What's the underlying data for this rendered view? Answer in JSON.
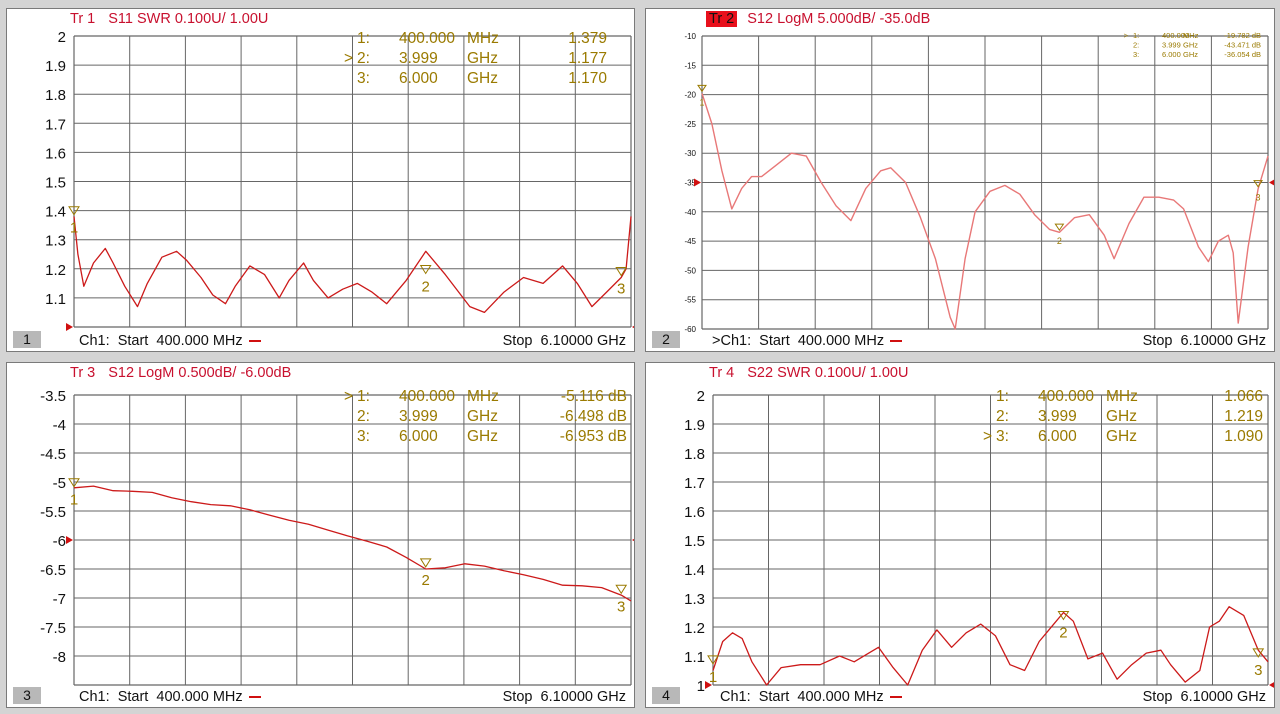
{
  "panels": [
    {
      "number": "1",
      "trace_label": "Tr  1",
      "trace_active": false,
      "measurement": "S11 SWR 0.100U/  1.00U",
      "footer": {
        "channel": "Ch1:",
        "start_label": "Start",
        "start_value": "400.000 MHz",
        "stop_label": "Stop",
        "stop_value": "6.10000 GHz"
      },
      "markers": [
        {
          "active": "",
          "id": "1:",
          "freq": "400.000",
          "unit": "MHz",
          "value": "1.379"
        },
        {
          "active": ">",
          "id": "2:",
          "freq": "3.999",
          "unit": "GHz",
          "value": "1.177"
        },
        {
          "active": "",
          "id": "3:",
          "freq": "6.000",
          "unit": "GHz",
          "value": "1.170"
        }
      ]
    },
    {
      "number": "2",
      "trace_label": "Tr  2",
      "trace_active": true,
      "measurement": "S12 LogM 5.000dB/  -35.0dB",
      "footer": {
        "channel": ">Ch1:",
        "start_label": "Start",
        "start_value": "400.000 MHz",
        "stop_label": "Stop",
        "stop_value": "6.10000 GHz"
      },
      "markers": [
        {
          "active": ">",
          "id": "1:",
          "freq": "400.000",
          "unit": "MHz",
          "value": "-19.782 dB"
        },
        {
          "active": "",
          "id": "2:",
          "freq": "3.999",
          "unit": "GHz",
          "value": "-43.471 dB"
        },
        {
          "active": "",
          "id": "3:",
          "freq": "6.000",
          "unit": "GHz",
          "value": "-36.054 dB"
        }
      ]
    },
    {
      "number": "3",
      "trace_label": "Tr  3",
      "trace_active": false,
      "measurement": "S12 LogM 0.500dB/  -6.00dB",
      "footer": {
        "channel": "Ch1:",
        "start_label": "Start",
        "start_value": "400.000 MHz",
        "stop_label": "Stop",
        "stop_value": "6.10000 GHz"
      },
      "markers": [
        {
          "active": ">",
          "id": "1:",
          "freq": "400.000",
          "unit": "MHz",
          "value": "-5.116 dB"
        },
        {
          "active": "",
          "id": "2:",
          "freq": "3.999",
          "unit": "GHz",
          "value": "-6.498 dB"
        },
        {
          "active": "",
          "id": "3:",
          "freq": "6.000",
          "unit": "GHz",
          "value": "-6.953 dB"
        }
      ]
    },
    {
      "number": "4",
      "trace_label": "Tr  4",
      "trace_active": false,
      "measurement": "S22 SWR 0.100U/  1.00U",
      "footer": {
        "channel": "Ch1:",
        "start_label": "Start",
        "start_value": "400.000 MHz",
        "stop_label": "Stop",
        "stop_value": "6.10000 GHz"
      },
      "markers": [
        {
          "active": "",
          "id": "1:",
          "freq": "400.000",
          "unit": "MHz",
          "value": "1.066"
        },
        {
          "active": "",
          "id": "2:",
          "freq": "3.999",
          "unit": "GHz",
          "value": "1.219"
        },
        {
          "active": ">",
          "id": "3:",
          "freq": "6.000",
          "unit": "GHz",
          "value": "1.090"
        }
      ]
    }
  ],
  "colors": {
    "trace": "#cc1a1a",
    "trace_light": "#e87878",
    "marker": "#9a7a00",
    "grid": "#666666",
    "title": "#c8102e"
  },
  "chart_data": [
    {
      "type": "line",
      "title": "S11 SWR 0.100U/  1.00U",
      "xlabel": "",
      "ylabel": "",
      "x_unit": "GHz",
      "xlim": [
        0.4,
        6.1
      ],
      "ylim": [
        1.0,
        2.0
      ],
      "y_ticks": [
        "2",
        "1.9",
        "1.8",
        "1.7",
        "1.6",
        "1.5",
        "1.4",
        "1.3",
        "1.2",
        "1.1"
      ],
      "reference_value": 1.0,
      "grid": true,
      "x": [
        0.4,
        0.44,
        0.5,
        0.6,
        0.72,
        0.8,
        0.92,
        1.05,
        1.15,
        1.3,
        1.45,
        1.55,
        1.7,
        1.82,
        1.95,
        2.05,
        2.2,
        2.35,
        2.5,
        2.6,
        2.75,
        2.85,
        3.0,
        3.15,
        3.3,
        3.45,
        3.6,
        3.8,
        4.0,
        4.2,
        4.45,
        4.6,
        4.8,
        5.0,
        5.2,
        5.4,
        5.55,
        5.7,
        5.85,
        6.0,
        6.05,
        6.1
      ],
      "series": [
        {
          "values": [
            1.38,
            1.25,
            1.14,
            1.22,
            1.27,
            1.22,
            1.14,
            1.07,
            1.15,
            1.24,
            1.26,
            1.23,
            1.17,
            1.11,
            1.08,
            1.14,
            1.21,
            1.18,
            1.1,
            1.16,
            1.22,
            1.16,
            1.1,
            1.13,
            1.15,
            1.12,
            1.08,
            1.16,
            1.26,
            1.18,
            1.07,
            1.05,
            1.12,
            1.17,
            1.15,
            1.21,
            1.15,
            1.07,
            1.12,
            1.17,
            1.2,
            1.38
          ]
        }
      ],
      "markers": [
        {
          "label": "1",
          "x": 0.4,
          "y": 1.379
        },
        {
          "label": "2",
          "x": 3.999,
          "y": 1.177
        },
        {
          "label": "3",
          "x": 6.0,
          "y": 1.17
        }
      ]
    },
    {
      "type": "line",
      "title": "S12 LogM 5.000dB/  -35.0dB",
      "xlabel": "",
      "ylabel": "",
      "x_unit": "GHz",
      "xlim": [
        0.4,
        6.1
      ],
      "ylim": [
        -60,
        -10
      ],
      "y_ticks": [
        "-10",
        "-15",
        "-20",
        "-25",
        "-30",
        "-35",
        "-40",
        "-45",
        "-50",
        "-55",
        "-60"
      ],
      "reference_value": -35.0,
      "grid": true,
      "x": [
        0.4,
        0.5,
        0.6,
        0.7,
        0.8,
        0.9,
        1.0,
        1.15,
        1.3,
        1.45,
        1.6,
        1.75,
        1.9,
        2.05,
        2.2,
        2.3,
        2.45,
        2.6,
        2.75,
        2.9,
        2.95,
        3.05,
        3.15,
        3.3,
        3.45,
        3.6,
        3.75,
        3.9,
        4.0,
        4.15,
        4.3,
        4.45,
        4.55,
        4.7,
        4.85,
        5.0,
        5.15,
        5.25,
        5.4,
        5.5,
        5.6,
        5.7,
        5.75,
        5.8,
        5.9,
        6.0,
        6.1
      ],
      "series": [
        {
          "values": [
            -19.8,
            -25,
            -33,
            -39.5,
            -36,
            -34,
            -34,
            -32,
            -30,
            -30.5,
            -35,
            -39,
            -41.5,
            -36,
            -33,
            -32.5,
            -35,
            -41,
            -48,
            -58,
            -60,
            -48,
            -40,
            -36.5,
            -35.5,
            -37,
            -40.5,
            -43,
            -43.5,
            -41,
            -40.5,
            -44,
            -48,
            -42,
            -37.5,
            -37.5,
            -38,
            -39.5,
            -46,
            -48.5,
            -45,
            -44,
            -47,
            -59,
            -46,
            -36.1,
            -30.5
          ]
        }
      ],
      "markers": [
        {
          "label": "1",
          "x": 0.4,
          "y": -19.782
        },
        {
          "label": "2",
          "x": 3.999,
          "y": -43.471
        },
        {
          "label": "3",
          "x": 6.0,
          "y": -36.054
        }
      ]
    },
    {
      "type": "line",
      "title": "S12 LogM 0.500dB/  -6.00dB",
      "xlabel": "",
      "ylabel": "",
      "x_unit": "GHz",
      "xlim": [
        0.4,
        6.1
      ],
      "ylim": [
        -8.5,
        -3.5
      ],
      "y_ticks": [
        "-3.5",
        "-4",
        "-4.5",
        "-5",
        "-5.5",
        "-6",
        "-6.5",
        "-7",
        "-7.5",
        "-8"
      ],
      "reference_value": -6.0,
      "grid": true,
      "x": [
        0.4,
        0.6,
        0.8,
        1.0,
        1.2,
        1.4,
        1.6,
        1.8,
        2.0,
        2.2,
        2.4,
        2.6,
        2.8,
        3.0,
        3.2,
        3.4,
        3.6,
        3.8,
        4.0,
        4.2,
        4.4,
        4.6,
        4.8,
        5.0,
        5.2,
        5.4,
        5.6,
        5.8,
        6.0,
        6.1
      ],
      "series": [
        {
          "values": [
            -5.1,
            -5.07,
            -5.15,
            -5.16,
            -5.18,
            -5.27,
            -5.34,
            -5.39,
            -5.41,
            -5.48,
            -5.57,
            -5.66,
            -5.73,
            -5.83,
            -5.93,
            -6.02,
            -6.12,
            -6.3,
            -6.5,
            -6.48,
            -6.41,
            -6.45,
            -6.53,
            -6.6,
            -6.68,
            -6.78,
            -6.79,
            -6.82,
            -6.95,
            -7.05
          ]
        }
      ],
      "markers": [
        {
          "label": "1",
          "x": 0.4,
          "y": -5.116
        },
        {
          "label": "2",
          "x": 3.999,
          "y": -6.498
        },
        {
          "label": "3",
          "x": 6.0,
          "y": -6.953
        }
      ]
    },
    {
      "type": "line",
      "title": "S22 SWR 0.100U/  1.00U",
      "xlabel": "",
      "ylabel": "",
      "x_unit": "GHz",
      "xlim": [
        0.4,
        6.1
      ],
      "ylim": [
        1.0,
        2.0
      ],
      "y_ticks": [
        "2",
        "1.9",
        "1.8",
        "1.7",
        "1.6",
        "1.5",
        "1.4",
        "1.3",
        "1.2",
        "1.1",
        "1"
      ],
      "reference_value": 1.0,
      "grid": true,
      "x": [
        0.4,
        0.5,
        0.6,
        0.7,
        0.8,
        0.95,
        1.1,
        1.3,
        1.5,
        1.7,
        1.85,
        2.0,
        2.1,
        2.25,
        2.4,
        2.55,
        2.7,
        2.85,
        3.0,
        3.15,
        3.3,
        3.45,
        3.6,
        3.75,
        3.9,
        4.0,
        4.1,
        4.25,
        4.4,
        4.55,
        4.7,
        4.85,
        5.0,
        5.1,
        5.25,
        5.4,
        5.5,
        5.6,
        5.7,
        5.85,
        6.0,
        6.1
      ],
      "series": [
        {
          "values": [
            1.05,
            1.15,
            1.18,
            1.16,
            1.08,
            0.98,
            1.06,
            1.07,
            1.07,
            1.1,
            1.08,
            1.11,
            1.13,
            1.06,
            1.0,
            1.12,
            1.19,
            1.13,
            1.18,
            1.21,
            1.17,
            1.07,
            1.05,
            1.15,
            1.21,
            1.25,
            1.22,
            1.09,
            1.11,
            1.02,
            1.07,
            1.11,
            1.12,
            1.07,
            1.01,
            1.05,
            1.2,
            1.22,
            1.27,
            1.24,
            1.12,
            1.08
          ]
        }
      ],
      "markers": [
        {
          "label": "1",
          "x": 0.4,
          "y": 1.066
        },
        {
          "label": "2",
          "x": 3.999,
          "y": 1.219
        },
        {
          "label": "3",
          "x": 6.0,
          "y": 1.09
        }
      ]
    }
  ]
}
